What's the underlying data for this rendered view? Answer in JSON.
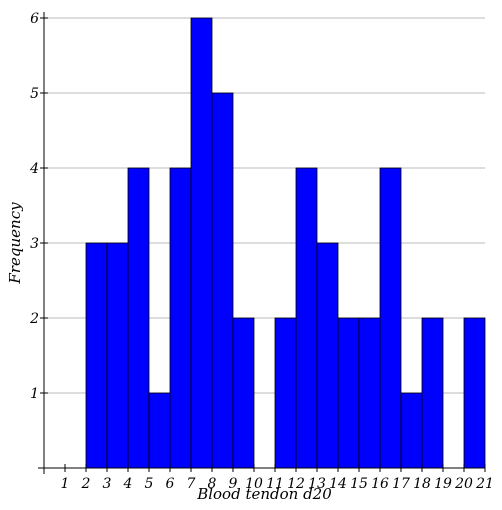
{
  "chart_data": {
    "type": "bar",
    "title": "",
    "xlabel": "Blood tendon d20",
    "ylabel": "Frequency",
    "bin_edges": [
      1,
      2,
      3,
      4,
      5,
      6,
      7,
      8,
      9,
      10,
      11,
      12,
      13,
      14,
      15,
      16,
      17,
      18,
      19,
      20,
      21
    ],
    "values": [
      0,
      3,
      3,
      4,
      1,
      4,
      6,
      5,
      2,
      0,
      2,
      4,
      3,
      2,
      2,
      4,
      1,
      2,
      0,
      2
    ],
    "x_ticks": [
      1,
      2,
      3,
      4,
      5,
      6,
      7,
      8,
      9,
      10,
      11,
      12,
      13,
      14,
      15,
      16,
      17,
      18,
      19,
      20,
      21
    ],
    "y_ticks": [
      1,
      2,
      3,
      4,
      5,
      6
    ],
    "xlim": [
      0,
      21
    ],
    "ylim": [
      0,
      6
    ],
    "grid": "horizontal",
    "bar_color": "#0000ff",
    "bar_edge_color": "#000000",
    "grid_color": "#bbbbbb"
  }
}
